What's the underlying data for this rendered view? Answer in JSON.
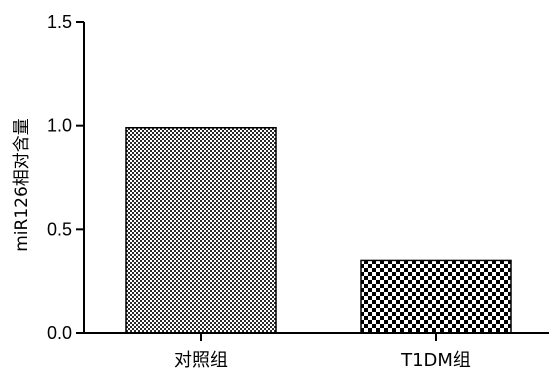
{
  "chart_data": {
    "type": "bar",
    "title": "",
    "xlabel": "",
    "ylabel": "miR126相对含量",
    "ylim": [
      0,
      1.5
    ],
    "yticks": [
      0.0,
      0.5,
      1.0,
      1.5
    ],
    "ytick_labels": [
      "0.0",
      "0.5",
      "1.0",
      "1.5"
    ],
    "categories": [
      "对照组",
      "T1DM组"
    ],
    "values": [
      0.99,
      0.35
    ],
    "bar_patterns": [
      "fine-checker",
      "coarse-checker"
    ],
    "grid": false,
    "legend": "none"
  }
}
